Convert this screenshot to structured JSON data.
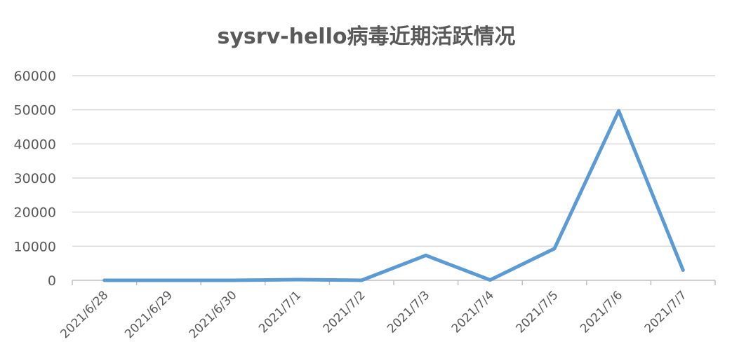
{
  "chart_data": {
    "type": "line",
    "title": "sysrv-hello病毒近期活跃情况",
    "xlabel": "",
    "ylabel": "",
    "categories": [
      "2021/6/28",
      "2021/6/29",
      "2021/6/30",
      "2021/7/1",
      "2021/7/2",
      "2021/7/3",
      "2021/7/4",
      "2021/7/5",
      "2021/7/6",
      "2021/7/7"
    ],
    "series": [
      {
        "values": [
          0,
          0,
          0,
          200,
          0,
          7300,
          100,
          9300,
          49700,
          3000
        ],
        "color": "#5b9bd5"
      }
    ],
    "ylim": [
      0,
      60000
    ],
    "yticks": [
      "0",
      "10000",
      "20000",
      "30000",
      "40000",
      "50000",
      "60000"
    ],
    "grid": true,
    "legend": "none"
  }
}
